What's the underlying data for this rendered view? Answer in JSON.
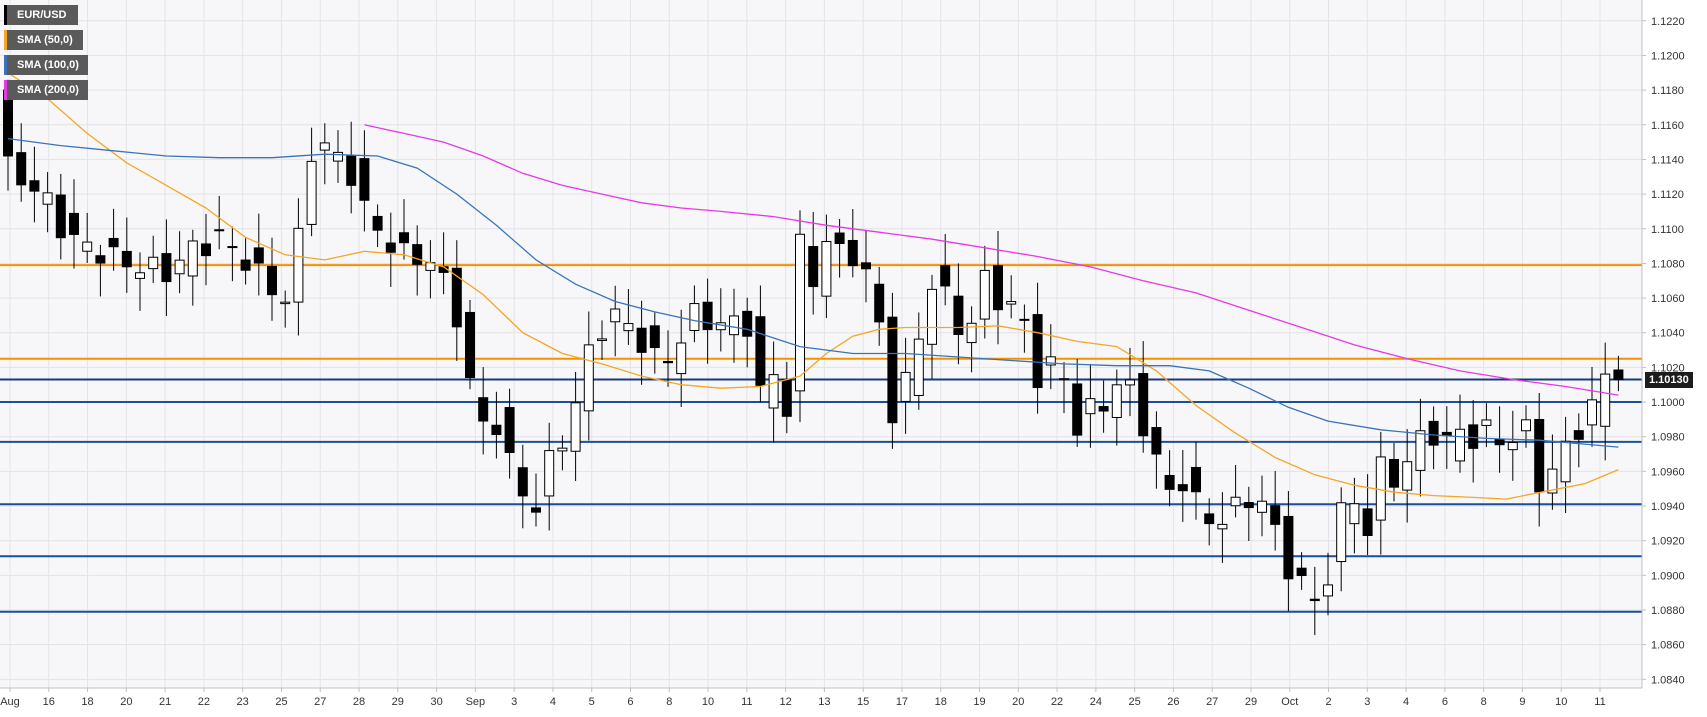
{
  "symbol": "EUR/USD",
  "current_price": "1.10130",
  "legend": [
    {
      "label": "EUR/USD",
      "color": "#000000"
    },
    {
      "label": "SMA (50,0)",
      "color": "#f5a623"
    },
    {
      "label": "SMA (100,0)",
      "color": "#3b73b9"
    },
    {
      "label": "SMA (200,0)",
      "color": "#e639e6"
    }
  ],
  "chart_data": {
    "type": "candlestick",
    "ylim": [
      1.0835,
      1.1232
    ],
    "y_ticks": [
      "1.0840",
      "1.0860",
      "1.0880",
      "1.0900",
      "1.0920",
      "1.0940",
      "1.0960",
      "1.0980",
      "1.1000",
      "1.1020",
      "1.1040",
      "1.1060",
      "1.1080",
      "1.1100",
      "1.1120",
      "1.1140",
      "1.1160",
      "1.1180",
      "1.1200",
      "1.1220"
    ],
    "x_ticks": [
      "Aug",
      "16",
      "18",
      "20",
      "21",
      "22",
      "23",
      "25",
      "27",
      "28",
      "29",
      "30",
      "Sep",
      "3",
      "4",
      "5",
      "6",
      "8",
      "10",
      "11",
      "12",
      "13",
      "15",
      "17",
      "18",
      "19",
      "20",
      "22",
      "24",
      "25",
      "26",
      "27",
      "29",
      "Oct",
      "2",
      "3",
      "4",
      "6",
      "8",
      "9",
      "10",
      "11"
    ],
    "grid": true,
    "horizontal_levels": [
      {
        "value": 1.1079,
        "color": "#f39200"
      },
      {
        "value": 1.1025,
        "color": "#f39200"
      },
      {
        "value": 1.1013,
        "color": "#1a3a78"
      },
      {
        "value": 1.1,
        "color": "#1a4f9c"
      },
      {
        "value": 1.0977,
        "color": "#1a4f9c"
      },
      {
        "value": 1.0941,
        "color": "#1a4f9c"
      },
      {
        "value": 1.0911,
        "color": "#1a4f9c"
      },
      {
        "value": 1.0879,
        "color": "#1a4f9c"
      }
    ],
    "price_path": [
      [
        0,
        1.118
      ],
      [
        0.5,
        1.115
      ],
      [
        1,
        1.1135
      ],
      [
        2,
        1.113
      ],
      [
        4,
        1.1115
      ],
      [
        5.5,
        1.1095
      ],
      [
        7,
        1.109
      ],
      [
        10,
        1.108
      ],
      [
        13,
        1.1075
      ],
      [
        15,
        1.1088
      ],
      [
        17,
        1.1095
      ],
      [
        19,
        1.1082
      ],
      [
        21,
        1.1065
      ],
      [
        22.5,
        1.1058
      ],
      [
        23.3,
        1.1115
      ],
      [
        24,
        1.1145
      ],
      [
        25,
        1.1148
      ],
      [
        27,
        1.1132
      ],
      [
        28.3,
        1.1105
      ],
      [
        29.5,
        1.1095
      ],
      [
        31,
        1.1085
      ],
      [
        33,
        1.1082
      ],
      [
        34.5,
        1.1062
      ],
      [
        35.5,
        1.1038
      ],
      [
        36.5,
        1.0985
      ],
      [
        38,
        1.0988
      ],
      [
        39,
        1.0965
      ],
      [
        40.5,
        1.0938
      ],
      [
        41.2,
        1.0942
      ],
      [
        42,
        1.0965
      ],
      [
        43.5,
        1.0985
      ],
      [
        44.5,
        1.1015
      ],
      [
        45.5,
        1.104
      ],
      [
        47,
        1.105
      ],
      [
        48.5,
        1.104
      ],
      [
        50,
        1.1025
      ],
      [
        51,
        1.1025
      ],
      [
        53,
        1.105
      ],
      [
        55,
        1.1045
      ],
      [
        57,
        1.1045
      ],
      [
        58,
        1.1005
      ],
      [
        59.5,
        1.102
      ],
      [
        60.5,
        1.0975
      ],
      [
        61,
        1.109
      ],
      [
        62,
        1.107
      ],
      [
        63,
        1.1095
      ],
      [
        64,
        1.1085
      ],
      [
        65,
        1.1085
      ],
      [
        66.5,
        1.107
      ],
      [
        67.5,
        1.1015
      ],
      [
        68,
        1.0995
      ],
      [
        69.5,
        1.102
      ],
      [
        71,
        1.107
      ],
      [
        72,
        1.106
      ],
      [
        73.5,
        1.1035
      ],
      [
        75,
        1.107
      ],
      [
        76,
        1.106
      ],
      [
        77,
        1.1055
      ],
      [
        78,
        1.1045
      ],
      [
        79,
        1.1015
      ],
      [
        80,
        1.102
      ],
      [
        81,
        1.1015
      ],
      [
        81.5,
        1.0975
      ],
      [
        82.5,
        1.0995
      ],
      [
        83.5,
        1.0995
      ],
      [
        84.5,
        1.1005
      ],
      [
        85.5,
        1.1015
      ],
      [
        86.5,
        1.1
      ],
      [
        87.5,
        1.0975
      ],
      [
        89,
        1.0948
      ],
      [
        90,
        1.0955
      ],
      [
        91.5,
        1.0935
      ],
      [
        92.5,
        1.093
      ],
      [
        93.5,
        1.0935
      ],
      [
        95,
        1.0945
      ],
      [
        96.5,
        1.094
      ],
      [
        97.5,
        1.091
      ],
      [
        99,
        1.0895
      ],
      [
        100,
        1.0885
      ],
      [
        101,
        1.09
      ],
      [
        102,
        1.0935
      ],
      [
        103,
        1.0945
      ],
      [
        104,
        1.0925
      ],
      [
        105,
        1.0962
      ],
      [
        106.5,
        1.0955
      ],
      [
        108,
        1.098
      ],
      [
        109,
        1.0982
      ],
      [
        110,
        1.0975
      ],
      [
        111,
        1.0985
      ],
      [
        112,
        1.0978
      ],
      [
        113.5,
        1.0985
      ],
      [
        114.5,
        1.0975
      ],
      [
        115.5,
        1.098
      ],
      [
        116.5,
        1.0988
      ],
      [
        117,
        1.0955
      ],
      [
        118,
        1.0958
      ],
      [
        119,
        1.0975
      ],
      [
        120,
        1.0985
      ],
      [
        121,
        1.0995
      ],
      [
        121.5,
        1.1025
      ],
      [
        122,
        1.1018
      ],
      [
        122.6,
        1.1013
      ]
    ],
    "sma50": [
      [
        0,
        1.119
      ],
      [
        3,
        1.1175
      ],
      [
        6,
        1.1155
      ],
      [
        9,
        1.1138
      ],
      [
        12,
        1.1125
      ],
      [
        15,
        1.1112
      ],
      [
        18,
        1.1095
      ],
      [
        21,
        1.1085
      ],
      [
        24,
        1.1082
      ],
      [
        27,
        1.1087
      ],
      [
        30,
        1.1085
      ],
      [
        33,
        1.1078
      ],
      [
        36,
        1.1062
      ],
      [
        39,
        1.104
      ],
      [
        42,
        1.1028
      ],
      [
        45,
        1.1022
      ],
      [
        48,
        1.1015
      ],
      [
        51,
        1.101
      ],
      [
        54,
        1.1008
      ],
      [
        57,
        1.1009
      ],
      [
        60,
        1.1015
      ],
      [
        62,
        1.1028
      ],
      [
        64,
        1.1038
      ],
      [
        66,
        1.1042
      ],
      [
        68,
        1.1043
      ],
      [
        70,
        1.1043
      ],
      [
        72,
        1.1043
      ],
      [
        75,
        1.1044
      ],
      [
        78,
        1.104
      ],
      [
        81,
        1.1035
      ],
      [
        84,
        1.1032
      ],
      [
        87,
        1.1018
      ],
      [
        90,
        1.0998
      ],
      [
        93,
        1.0982
      ],
      [
        96,
        1.0968
      ],
      [
        99,
        1.0958
      ],
      [
        102,
        1.0952
      ],
      [
        105,
        1.0948
      ],
      [
        108,
        1.0946
      ],
      [
        111,
        1.0945
      ],
      [
        113.5,
        1.0944
      ],
      [
        115.5,
        1.0947
      ],
      [
        117.5,
        1.095
      ],
      [
        119.5,
        1.0953
      ],
      [
        122,
        1.0961
      ]
    ],
    "sma100": [
      [
        0,
        1.1152
      ],
      [
        4,
        1.1148
      ],
      [
        8,
        1.1145
      ],
      [
        12,
        1.1142
      ],
      [
        16,
        1.1141
      ],
      [
        20,
        1.1141
      ],
      [
        24,
        1.1143
      ],
      [
        28,
        1.1142
      ],
      [
        31,
        1.1135
      ],
      [
        34,
        1.112
      ],
      [
        37,
        1.1102
      ],
      [
        40,
        1.1082
      ],
      [
        43,
        1.1068
      ],
      [
        46,
        1.1058
      ],
      [
        49,
        1.1052
      ],
      [
        52,
        1.1047
      ],
      [
        56,
        1.1042
      ],
      [
        60,
        1.1032
      ],
      [
        64,
        1.1028
      ],
      [
        68,
        1.1028
      ],
      [
        72,
        1.1026
      ],
      [
        76,
        1.1024
      ],
      [
        80,
        1.1022
      ],
      [
        84,
        1.1021
      ],
      [
        88,
        1.1021
      ],
      [
        91,
        1.1018
      ],
      [
        94,
        1.1008
      ],
      [
        97,
        1.0997
      ],
      [
        100,
        1.0989
      ],
      [
        104,
        1.0984
      ],
      [
        108,
        1.0981
      ],
      [
        112,
        1.0979
      ],
      [
        116,
        1.0978
      ],
      [
        119,
        1.0976
      ],
      [
        122,
        1.0974
      ]
    ],
    "sma200": [
      [
        27,
        1.116
      ],
      [
        30,
        1.1155
      ],
      [
        33,
        1.115
      ],
      [
        36,
        1.1142
      ],
      [
        39,
        1.1132
      ],
      [
        42,
        1.1125
      ],
      [
        45,
        1.112
      ],
      [
        48,
        1.1115
      ],
      [
        51,
        1.1112
      ],
      [
        54,
        1.111
      ],
      [
        58,
        1.1107
      ],
      [
        62,
        1.1102
      ],
      [
        66,
        1.1098
      ],
      [
        70,
        1.1094
      ],
      [
        74,
        1.1089
      ],
      [
        78,
        1.1084
      ],
      [
        82,
        1.1078
      ],
      [
        86,
        1.107
      ],
      [
        90,
        1.1063
      ],
      [
        94,
        1.1053
      ],
      [
        98,
        1.1043
      ],
      [
        102,
        1.1033
      ],
      [
        106,
        1.1025
      ],
      [
        110,
        1.1018
      ],
      [
        114,
        1.1013
      ],
      [
        118,
        1.1009
      ],
      [
        122,
        1.1004
      ]
    ]
  }
}
